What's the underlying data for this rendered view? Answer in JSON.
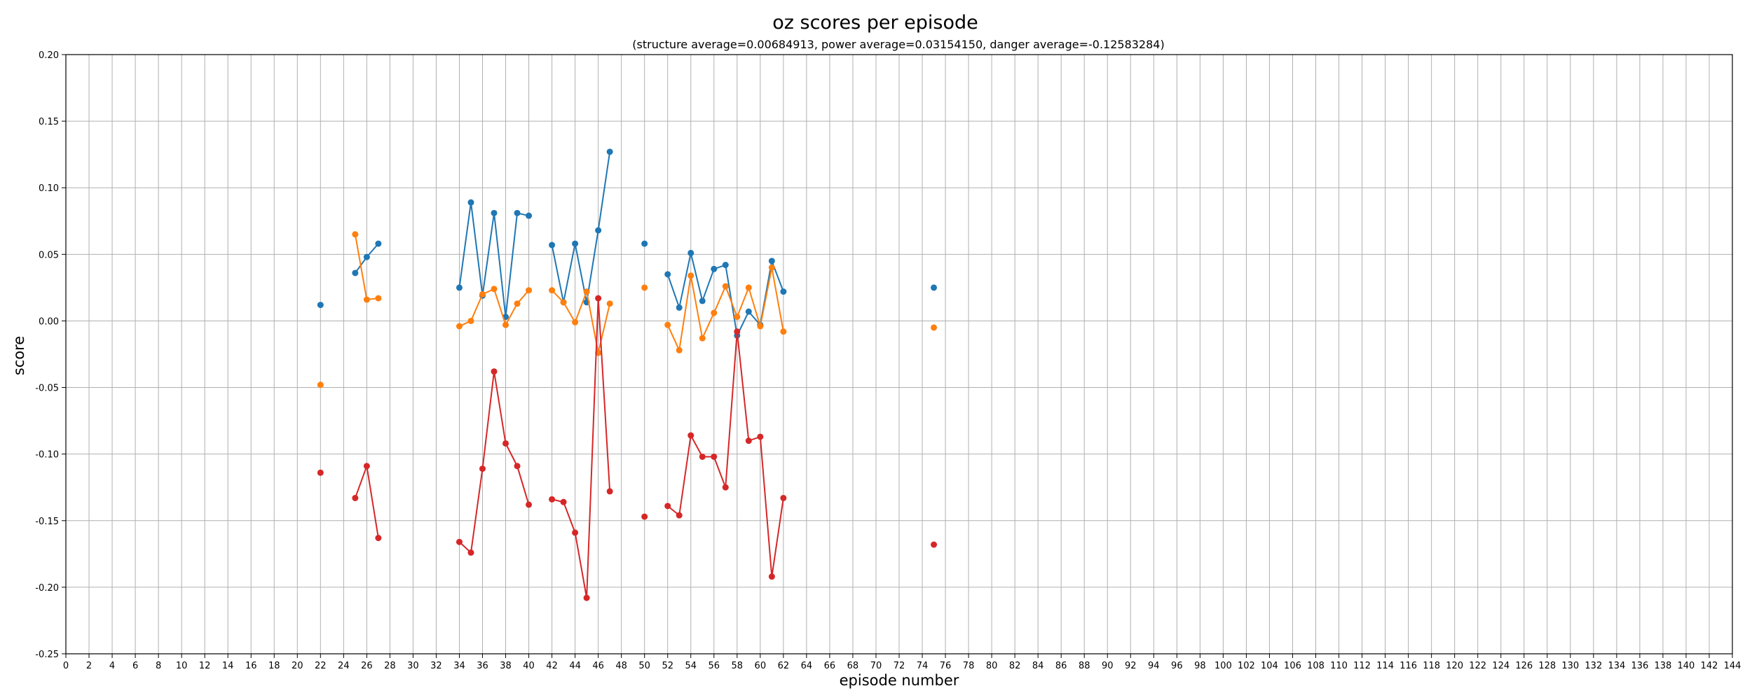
{
  "chart_data": {
    "type": "line",
    "title": "oz scores per episode",
    "subtitle": "(structure average=0.00684913, power average=0.03154150, danger average=-0.12583284)",
    "xlabel": "episode number",
    "ylabel": "score",
    "xlim": [
      0,
      144
    ],
    "ylim": [
      -0.25,
      0.2
    ],
    "x_tick_step": 2,
    "y_ticks": [
      -0.25,
      -0.2,
      -0.15,
      -0.1,
      -0.05,
      0.0,
      0.05,
      0.1,
      0.15,
      0.2
    ],
    "grid": true,
    "legend": "none",
    "series": [
      {
        "color": "#1f77b4",
        "points": [
          [
            22,
            0.012
          ],
          [
            25,
            0.036
          ],
          [
            26,
            0.048
          ],
          [
            27,
            0.058
          ],
          [
            34,
            0.025
          ],
          [
            35,
            0.089
          ],
          [
            36,
            0.019
          ],
          [
            37,
            0.081
          ],
          [
            38,
            0.003
          ],
          [
            39,
            0.081
          ],
          [
            40,
            0.079
          ],
          [
            42,
            0.057
          ],
          [
            43,
            0.014
          ],
          [
            44,
            0.058
          ],
          [
            45,
            0.014
          ],
          [
            46,
            0.068
          ],
          [
            47,
            0.127
          ],
          [
            50,
            0.058
          ],
          [
            52,
            0.035
          ],
          [
            53,
            0.01
          ],
          [
            54,
            0.051
          ],
          [
            55,
            0.015
          ],
          [
            56,
            0.039
          ],
          [
            57,
            0.042
          ],
          [
            58,
            -0.011
          ],
          [
            59,
            0.007
          ],
          [
            60,
            -0.003
          ],
          [
            61,
            0.045
          ],
          [
            62,
            0.022
          ],
          [
            75,
            0.025
          ]
        ]
      },
      {
        "color": "#ff7f0e",
        "points": [
          [
            22,
            -0.048
          ],
          [
            25,
            0.065
          ],
          [
            26,
            0.016
          ],
          [
            27,
            0.017
          ],
          [
            34,
            -0.004
          ],
          [
            35,
            0.0
          ],
          [
            36,
            0.02
          ],
          [
            37,
            0.024
          ],
          [
            38,
            -0.003
          ],
          [
            39,
            0.013
          ],
          [
            40,
            0.023
          ],
          [
            42,
            0.023
          ],
          [
            43,
            0.014
          ],
          [
            44,
            -0.001
          ],
          [
            45,
            0.022
          ],
          [
            46,
            -0.024
          ],
          [
            47,
            0.013
          ],
          [
            50,
            0.025
          ],
          [
            52,
            -0.003
          ],
          [
            53,
            -0.022
          ],
          [
            54,
            0.034
          ],
          [
            55,
            -0.013
          ],
          [
            56,
            0.006
          ],
          [
            57,
            0.026
          ],
          [
            58,
            0.003
          ],
          [
            59,
            0.025
          ],
          [
            60,
            -0.004
          ],
          [
            61,
            0.04
          ],
          [
            62,
            -0.008
          ],
          [
            75,
            -0.005
          ]
        ]
      },
      {
        "color": "#d62728",
        "points": [
          [
            22,
            -0.114
          ],
          [
            25,
            -0.133
          ],
          [
            26,
            -0.109
          ],
          [
            27,
            -0.163
          ],
          [
            34,
            -0.166
          ],
          [
            35,
            -0.174
          ],
          [
            36,
            -0.111
          ],
          [
            37,
            -0.038
          ],
          [
            38,
            -0.092
          ],
          [
            39,
            -0.109
          ],
          [
            40,
            -0.138
          ],
          [
            42,
            -0.134
          ],
          [
            43,
            -0.136
          ],
          [
            44,
            -0.159
          ],
          [
            45,
            -0.208
          ],
          [
            46,
            0.017
          ],
          [
            47,
            -0.128
          ],
          [
            50,
            -0.147
          ],
          [
            52,
            -0.139
          ],
          [
            53,
            -0.146
          ],
          [
            54,
            -0.086
          ],
          [
            55,
            -0.102
          ],
          [
            56,
            -0.102
          ],
          [
            57,
            -0.125
          ],
          [
            58,
            -0.008
          ],
          [
            59,
            -0.09
          ],
          [
            60,
            -0.087
          ],
          [
            61,
            -0.192
          ],
          [
            62,
            -0.133
          ],
          [
            75,
            -0.168
          ]
        ]
      }
    ]
  }
}
